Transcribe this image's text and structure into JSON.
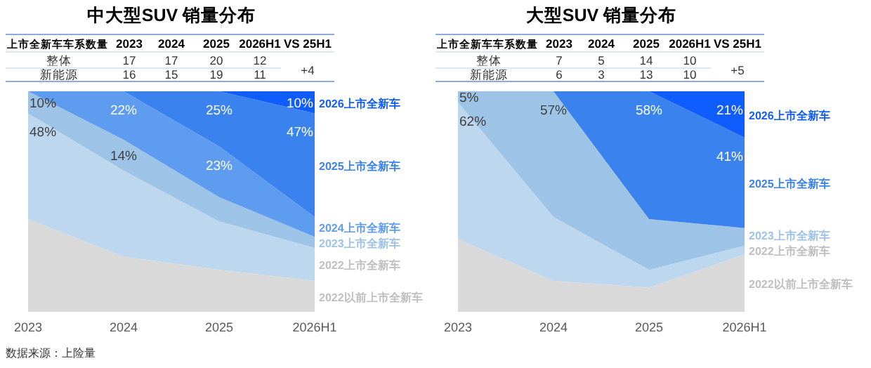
{
  "chart_data": [
    {
      "type": "other",
      "title": "中大型SUV 销量分布",
      "ylabel": "上市全新车车系数量",
      "data_labels": true,
      "categories": [
        "2023",
        "2024",
        "2025",
        "2026H1",
        "VS 25H1"
      ],
      "series": [
        {
          "name": "整体",
          "values": [
            17,
            17,
            20,
            12,
            null
          ]
        },
        {
          "name": "新能源",
          "values": [
            16,
            15,
            19,
            11,
            null
          ]
        }
      ],
      "annotations": [
        "+4"
      ]
    },
    {
      "type": "area",
      "stacked": true,
      "categories": [
        "2023",
        "2024",
        "2025",
        "2026H1"
      ],
      "series": [
        {
          "name": "2022以前上市全新车",
          "color": "#d9d9d9",
          "values": [
            42,
            25,
            19,
            14
          ],
          "value_labels": [
            null,
            null,
            null,
            null
          ]
        },
        {
          "name": "2022上市全新车",
          "color": "#bdd7ee",
          "values": [
            48,
            39,
            22,
            15
          ],
          "value_labels": [
            "48%",
            null,
            null,
            null
          ]
        },
        {
          "name": "2023上市全新车",
          "color": "#9dc3e6",
          "values": [
            10,
            14,
            11,
            5
          ],
          "value_labels": [
            "10%",
            "14%",
            null,
            null
          ]
        },
        {
          "name": "2024上市全新车",
          "color": "#5e9cf0",
          "values": [
            0,
            22,
            23,
            9
          ],
          "value_labels": [
            null,
            "22%",
            "23%",
            null
          ]
        },
        {
          "name": "2025上市全新车",
          "color": "#3a83ee",
          "values": [
            0,
            0,
            25,
            47
          ],
          "value_labels": [
            null,
            null,
            "25%",
            "47%"
          ]
        },
        {
          "name": "2026上市全新车",
          "color": "#0f5cff",
          "values": [
            0,
            0,
            0,
            10
          ],
          "value_labels": [
            null,
            null,
            null,
            "10%"
          ]
        }
      ],
      "annotations": [
        "数据来源：上险量"
      ]
    },
    {
      "type": "other",
      "title": "大型SUV 销量分布",
      "ylabel": "上市全新车车系数量",
      "data_labels": true,
      "categories": [
        "2023",
        "2024",
        "2025",
        "2026H1",
        "VS 25H1"
      ],
      "series": [
        {
          "name": "整体",
          "values": [
            7,
            5,
            14,
            10,
            null
          ]
        },
        {
          "name": "新能源",
          "values": [
            6,
            3,
            13,
            10,
            null
          ]
        }
      ],
      "annotations": [
        "+5"
      ]
    },
    {
      "type": "area",
      "stacked": true,
      "categories": [
        "2023",
        "2024",
        "2025",
        "2026H1"
      ],
      "series": [
        {
          "name": "2022以前上市全新车",
          "color": "#d9d9d9",
          "values": [
            33,
            14,
            11,
            26
          ],
          "value_labels": [
            null,
            null,
            null,
            null
          ]
        },
        {
          "name": "2022上市全新车",
          "color": "#bdd7ee",
          "values": [
            62,
            29,
            8,
            4
          ],
          "value_labels": [
            "62%",
            null,
            null,
            null
          ]
        },
        {
          "name": "2023上市全新车",
          "color": "#9dc3e6",
          "values": [
            5,
            57,
            23,
            8
          ],
          "value_labels": [
            "5%",
            "57%",
            null,
            null
          ]
        },
        {
          "name": "2025上市全新车",
          "color": "#3a83ee",
          "values": [
            0,
            0,
            58,
            41
          ],
          "value_labels": [
            null,
            null,
            "58%",
            "41%"
          ]
        },
        {
          "name": "2026上市全新车",
          "color": "#0f5cff",
          "values": [
            0,
            0,
            0,
            21
          ],
          "value_labels": [
            null,
            null,
            null,
            "21%"
          ]
        }
      ]
    }
  ]
}
